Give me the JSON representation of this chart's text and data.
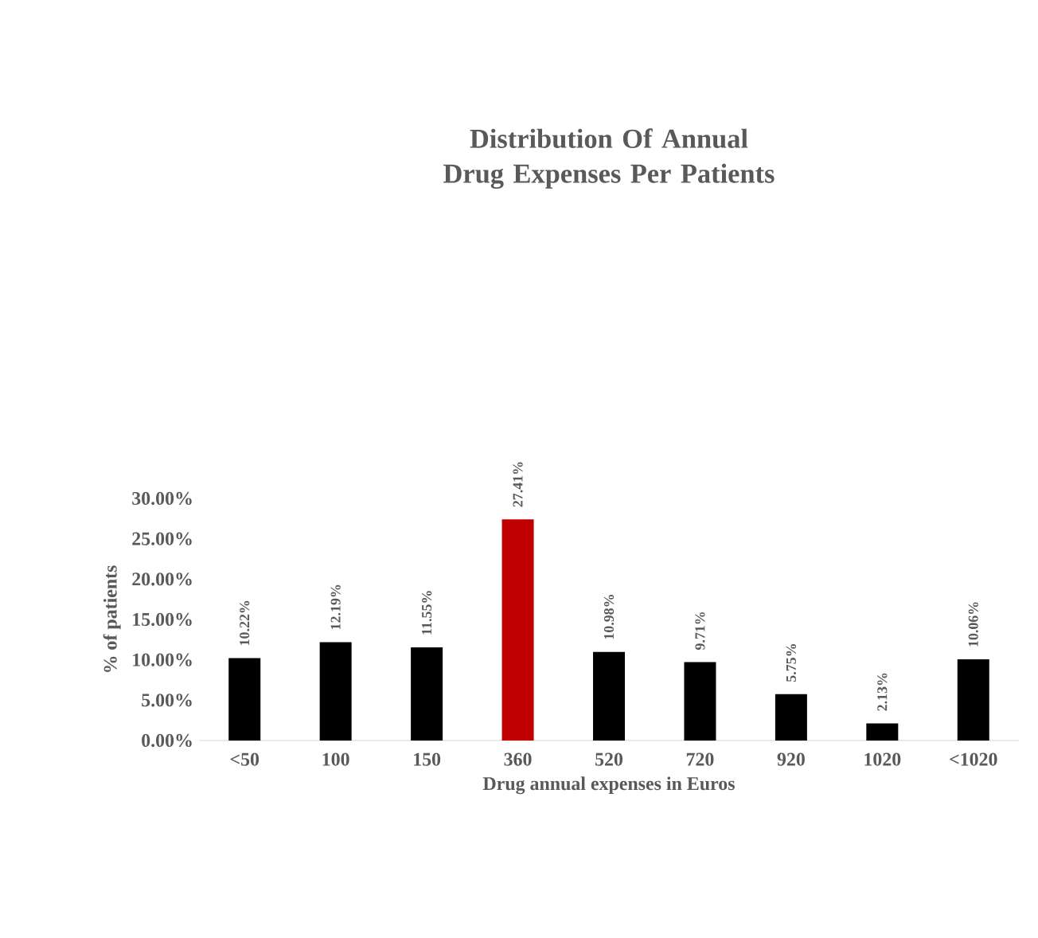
{
  "chart_data": {
    "type": "bar",
    "title": "Distribution Of Annual Drug Expenses Per Patients",
    "xlabel": "Drug annual expenses in Euros",
    "ylabel": "% of patients",
    "categories": [
      "<50",
      "100",
      "150",
      "360",
      "520",
      "720",
      "920",
      "1020",
      "<1020"
    ],
    "values": [
      10.22,
      12.19,
      11.55,
      27.41,
      10.98,
      9.71,
      5.75,
      2.13,
      10.06
    ],
    "value_labels": [
      "10.22%",
      "12.19%",
      "11.55%",
      "27.41%",
      "10.98%",
      "9.71%",
      "5.75%",
      "2.13%",
      "10.06%"
    ],
    "colors": [
      "#000000",
      "#000000",
      "#000000",
      "#c00000",
      "#000000",
      "#000000",
      "#000000",
      "#000000",
      "#000000"
    ],
    "ylim": [
      0,
      30
    ],
    "yticks": [
      {
        "value": 0,
        "label": "0.00%"
      },
      {
        "value": 5,
        "label": "5.00%"
      },
      {
        "value": 10,
        "label": "10.00%"
      },
      {
        "value": 15,
        "label": "15.00%"
      },
      {
        "value": 20,
        "label": "20.00%"
      },
      {
        "value": 25,
        "label": "25.00%"
      },
      {
        "value": 30,
        "label": "30.00%"
      }
    ]
  }
}
